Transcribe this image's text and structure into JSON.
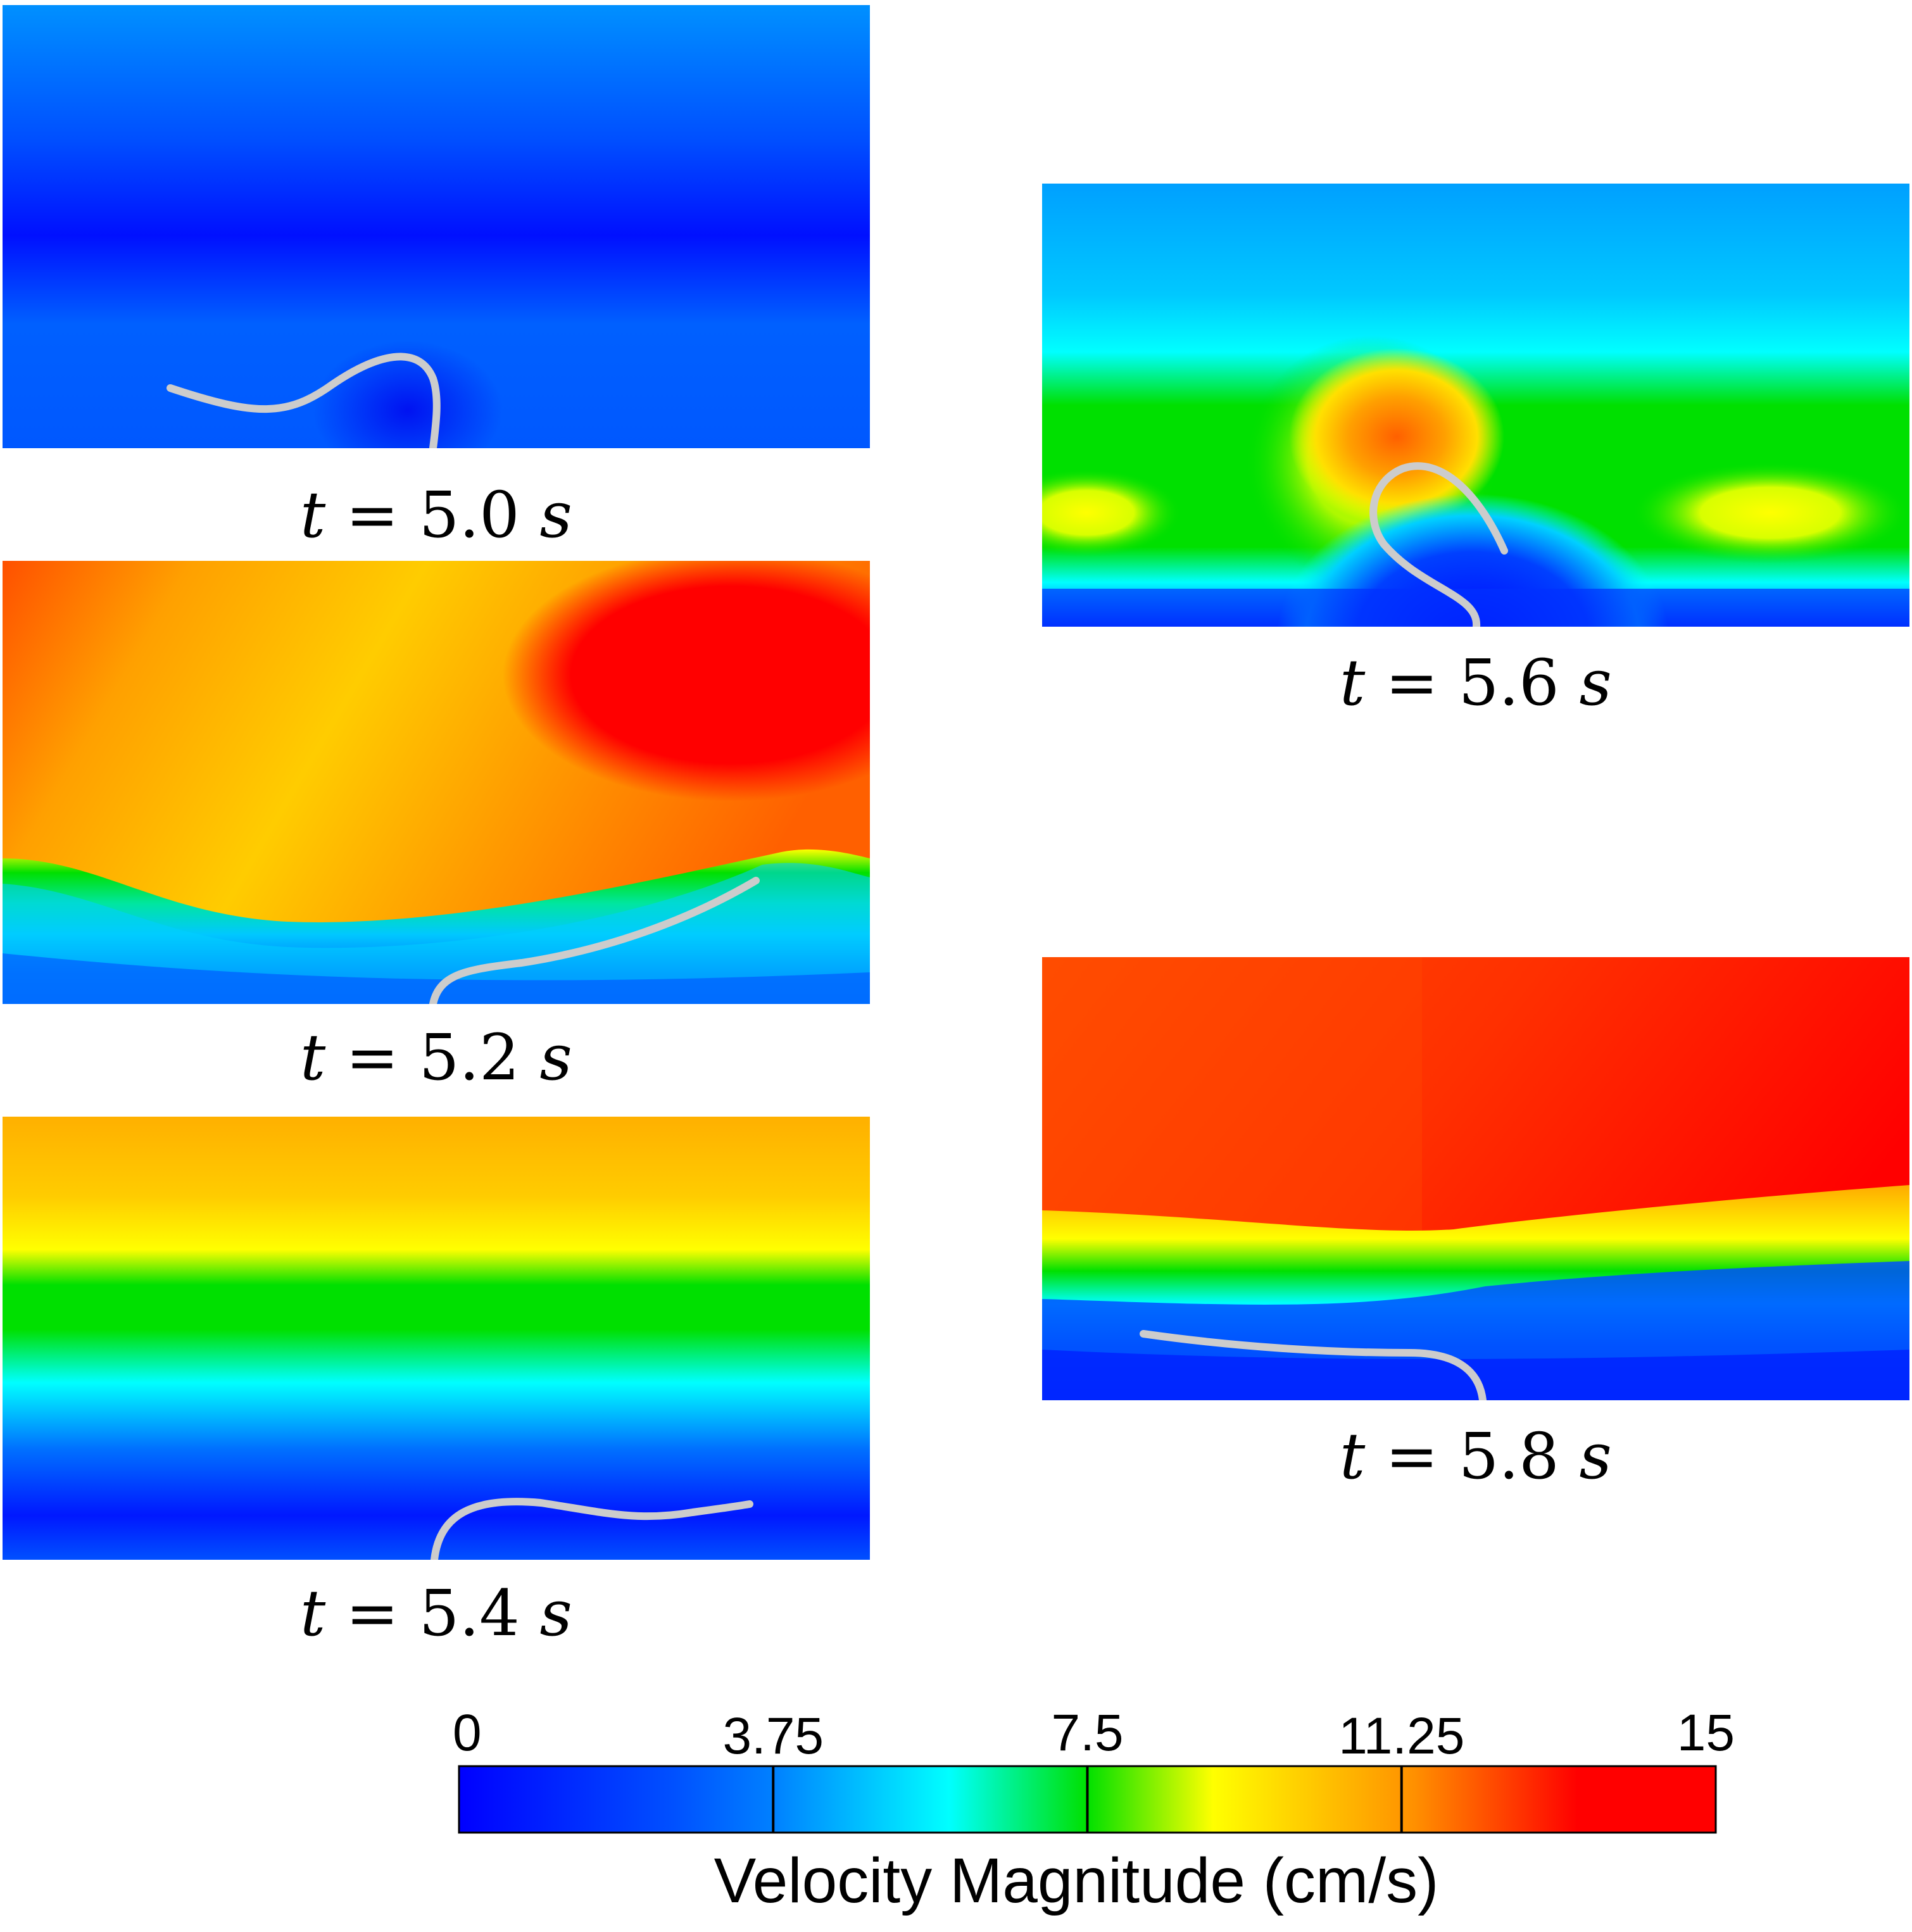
{
  "panels": [
    {
      "id": "t50",
      "caption": {
        "var": "t",
        "eq": " = ",
        "num": "5.0 ",
        "unit": "s"
      }
    },
    {
      "id": "t52",
      "caption": {
        "var": "t",
        "eq": " = ",
        "num": "5.2 ",
        "unit": "s"
      }
    },
    {
      "id": "t54",
      "caption": {
        "var": "t",
        "eq": " = ",
        "num": "5.4 ",
        "unit": "s"
      }
    },
    {
      "id": "t56",
      "caption": {
        "var": "t",
        "eq": " = ",
        "num": "5.6 ",
        "unit": "s"
      }
    },
    {
      "id": "t58",
      "caption": {
        "var": "t",
        "eq": " = ",
        "num": "5.8 ",
        "unit": "s"
      }
    }
  ],
  "colorbar": {
    "title": "Velocity Magnitude (cm/s)",
    "min": 0,
    "max": 15,
    "ticks": [
      "0",
      "3.75",
      "7.5",
      "11.25",
      "15"
    ],
    "colormap": [
      "#0000ff",
      "#0080ff",
      "#00ffff",
      "#00ff00",
      "#ffff00",
      "#ff8000",
      "#ff0000"
    ]
  },
  "colors": {
    "filament": "#cccccc",
    "deep_blue": "#0000ff",
    "mid_blue": "#0070ff",
    "light_blue": "#00a0ff",
    "cyan": "#00ffff",
    "green": "#00e000",
    "yellow": "#ffee00",
    "orange": "#ffaa00",
    "red": "#ff0000"
  }
}
